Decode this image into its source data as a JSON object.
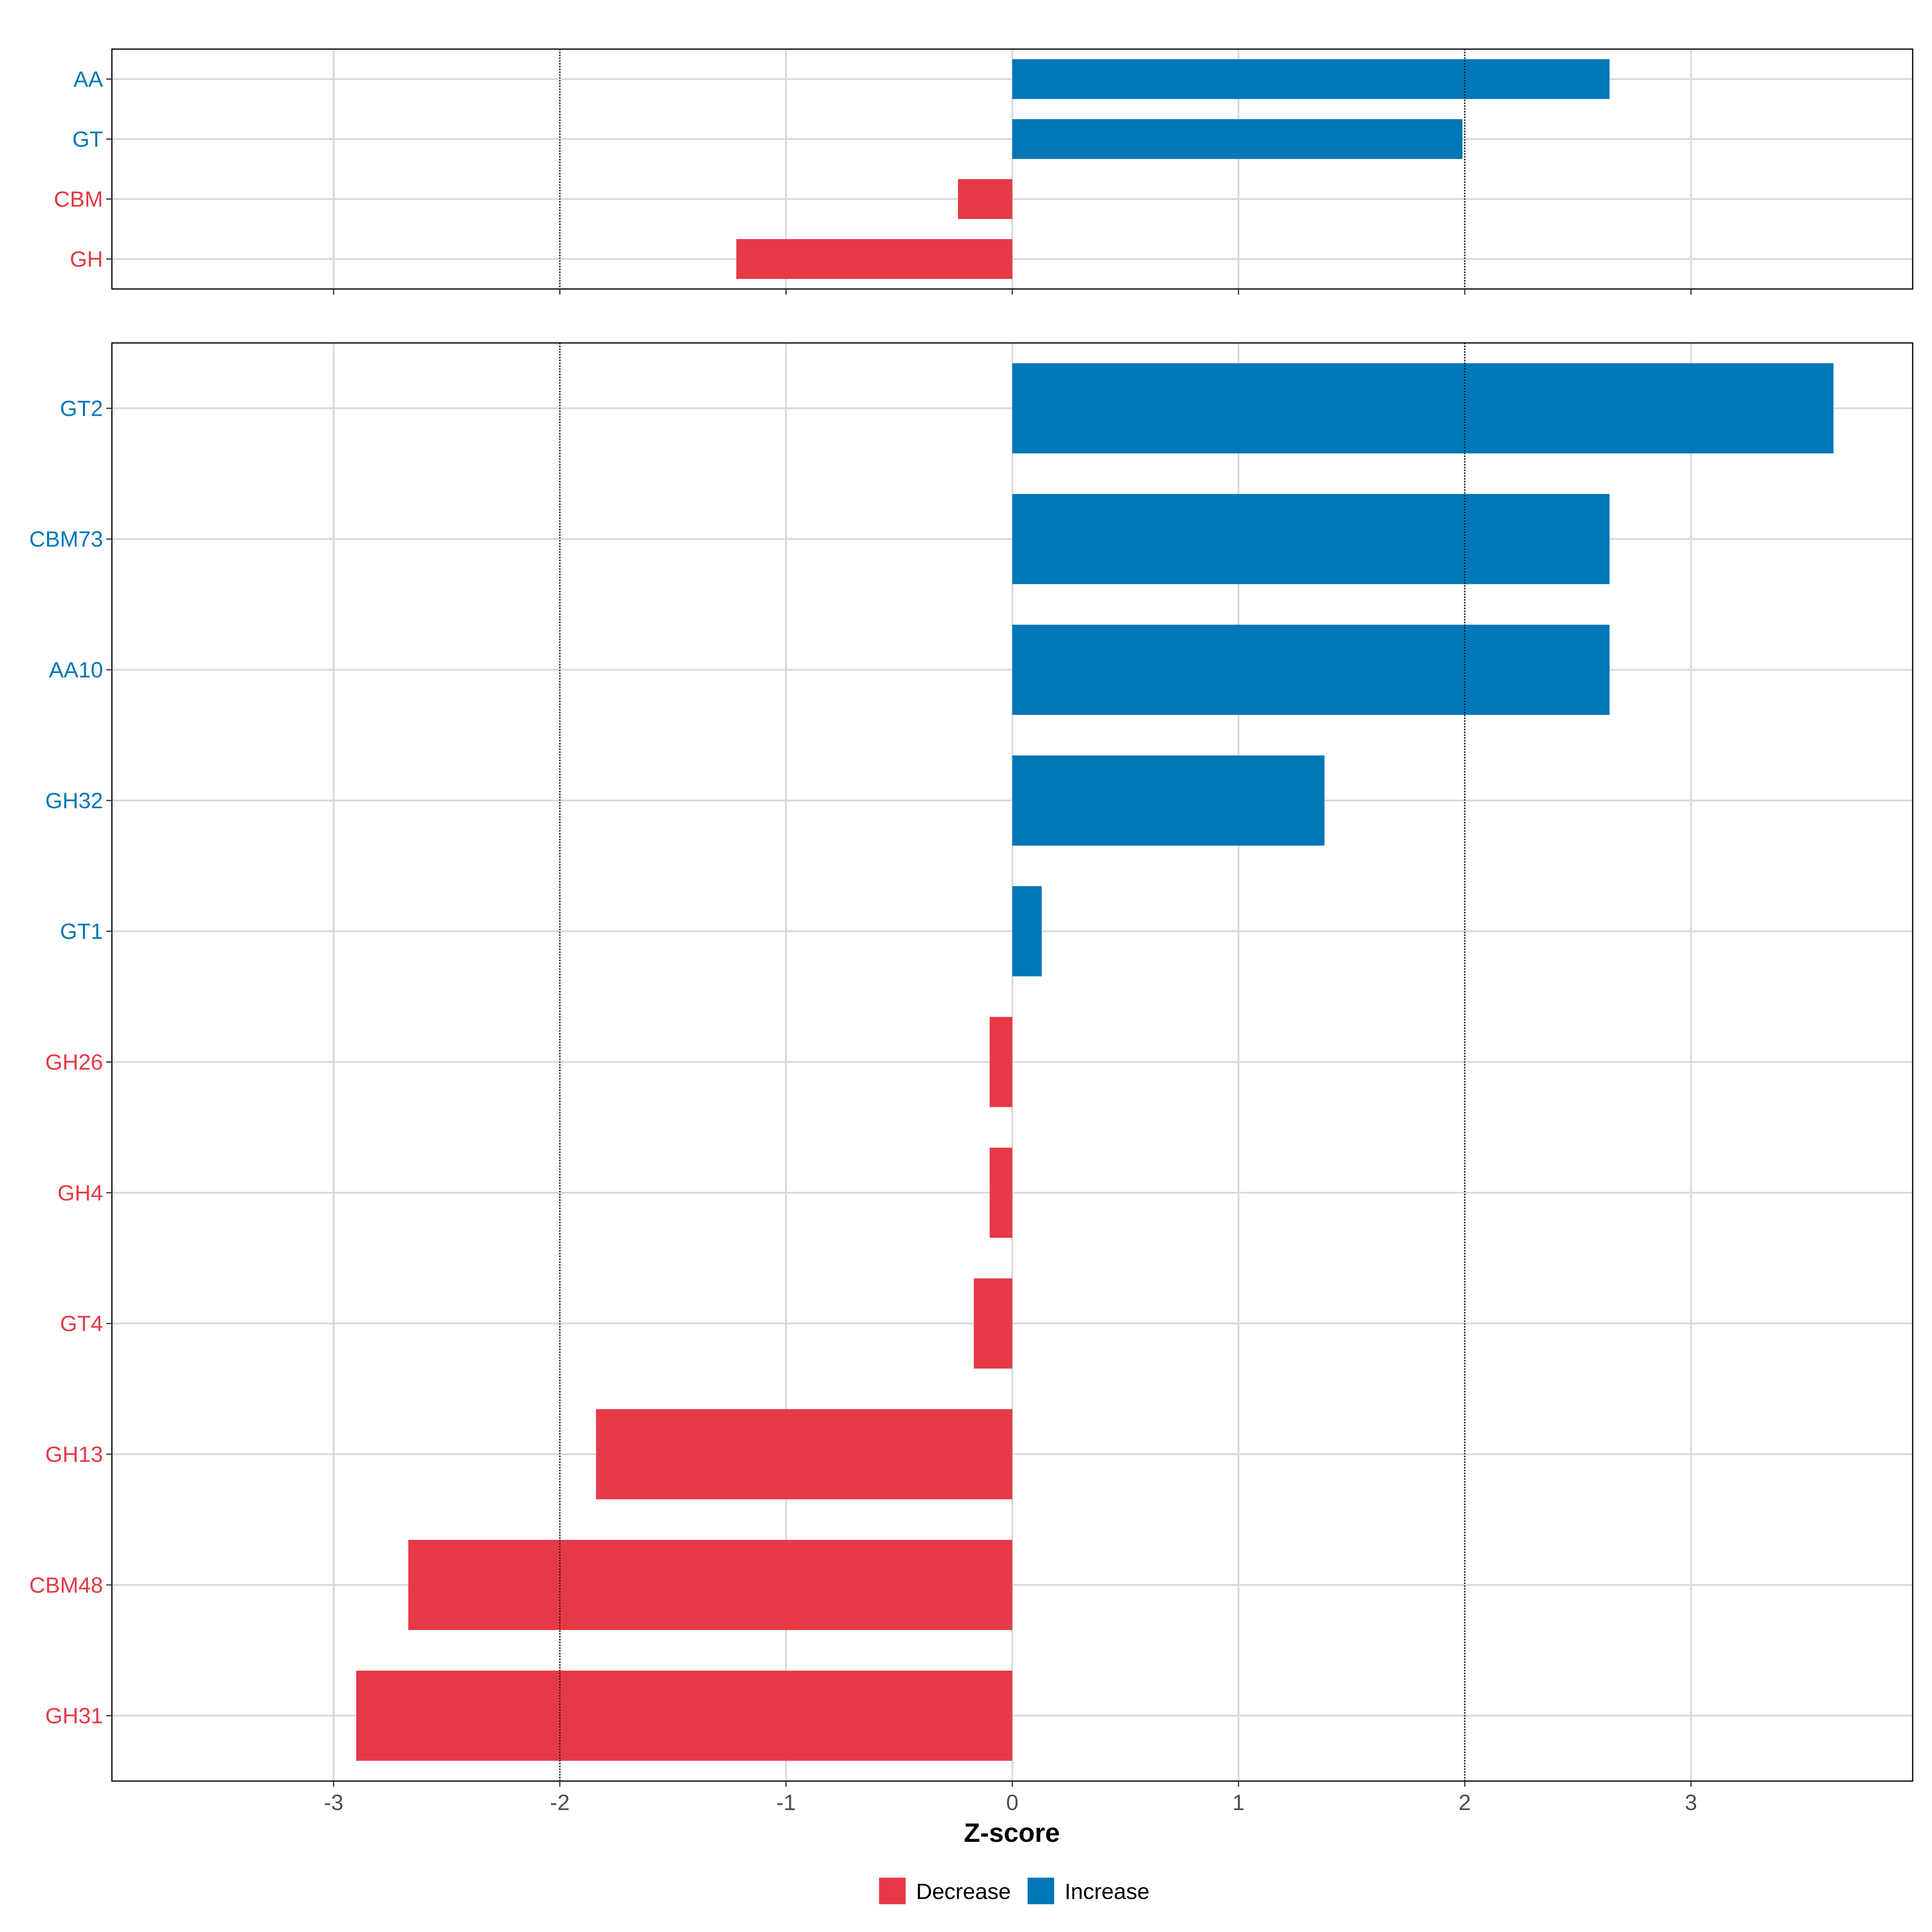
{
  "colors": {
    "Decrease": "#E63946",
    "Increase": "#0077B6"
  },
  "chart_data": [
    {
      "type": "bar",
      "orientation": "horizontal",
      "panel": "top",
      "categories": [
        "AA",
        "GT",
        "CBM",
        "GH"
      ],
      "values": [
        2.64,
        1.99,
        -0.24,
        -1.22
      ],
      "direction": [
        "Increase",
        "Increase",
        "Decrease",
        "Decrease"
      ],
      "xlim": [
        -3.98,
        3.98
      ],
      "reference_lines": [
        -2,
        2
      ],
      "grid": true
    },
    {
      "type": "bar",
      "orientation": "horizontal",
      "panel": "bottom",
      "categories": [
        "GT2",
        "CBM73",
        "AA10",
        "GH32",
        "GT1",
        "GH26",
        "GH4",
        "GT4",
        "GH13",
        "CBM48",
        "GH31"
      ],
      "values": [
        3.63,
        2.64,
        2.64,
        1.38,
        0.13,
        -0.1,
        -0.1,
        -0.17,
        -1.84,
        -2.67,
        -2.9
      ],
      "direction": [
        "Increase",
        "Increase",
        "Increase",
        "Increase",
        "Increase",
        "Decrease",
        "Decrease",
        "Decrease",
        "Decrease",
        "Decrease",
        "Decrease"
      ],
      "xlim": [
        -3.98,
        3.98
      ],
      "reference_lines": [
        -2,
        2
      ],
      "grid": true,
      "xticks": [
        -3,
        -2,
        -1,
        0,
        1,
        2,
        3
      ],
      "xtick_labels": [
        "-3",
        "-2",
        "-1",
        "0",
        "1",
        "2",
        "3"
      ],
      "xlabel": "Z-score"
    }
  ],
  "legend": {
    "position": "bottom",
    "items": [
      {
        "label": "Decrease",
        "color": "#E63946"
      },
      {
        "label": "Increase",
        "color": "#0077B6"
      }
    ]
  }
}
